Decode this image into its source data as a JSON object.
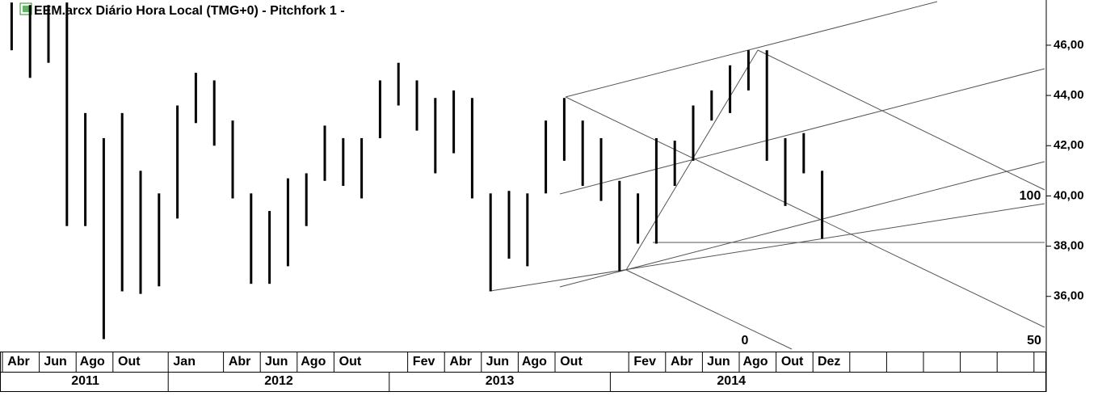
{
  "chart_data": {
    "type": "range",
    "title": "EEM.arcx Diário Hora Local (TMG+0)  -  Pitchfork 1 -",
    "categories": [
      "Abr",
      null,
      "Jun",
      null,
      "Ago",
      null,
      "Out",
      null,
      null,
      "Jan",
      null,
      null,
      "Abr",
      null,
      "Jun",
      null,
      "Ago",
      null,
      "Out",
      null,
      null,
      null,
      "Fev",
      null,
      "Abr",
      null,
      "Jun",
      null,
      "Ago",
      null,
      "Out",
      null,
      null,
      null,
      "Fev",
      null,
      "Abr",
      null,
      "Jun",
      null,
      "Ago",
      null,
      "Out",
      null,
      "Dez",
      null,
      null,
      null,
      null,
      null,
      null,
      null,
      null,
      null,
      null,
      null,
      null
    ],
    "years": [
      "2011",
      "2012",
      "2013",
      "2014"
    ],
    "high": [
      47.7,
      47.6,
      47.6,
      47.7,
      43.3,
      42.3,
      43.3,
      41.0,
      40.1,
      43.6,
      44.9,
      44.6,
      43.0,
      40.1,
      39.4,
      40.7,
      40.9,
      42.8,
      42.3,
      42.3,
      44.6,
      45.3,
      44.6,
      43.9,
      44.2,
      43.9,
      40.1,
      40.2,
      40.1,
      43.0,
      43.9,
      43.0,
      42.3,
      40.6,
      40.1,
      42.3,
      42.2,
      43.6,
      44.2,
      45.2,
      45.8,
      45.8,
      42.3,
      42.5,
      41.0,
      null,
      null,
      null,
      null,
      null,
      null,
      null,
      null,
      null,
      null,
      null,
      null
    ],
    "low": [
      45.8,
      44.7,
      45.3,
      38.8,
      38.8,
      34.3,
      36.2,
      36.1,
      36.4,
      39.1,
      42.9,
      42.0,
      39.9,
      36.5,
      36.5,
      37.2,
      38.8,
      40.6,
      40.4,
      39.9,
      42.3,
      43.6,
      42.6,
      40.9,
      41.7,
      39.9,
      36.2,
      37.5,
      37.2,
      40.1,
      41.4,
      40.4,
      39.8,
      37.0,
      38.1,
      38.1,
      40.4,
      41.4,
      43.0,
      43.3,
      44.2,
      41.4,
      39.6,
      40.9,
      38.3,
      null,
      null,
      null,
      null,
      null,
      null,
      null,
      null,
      null,
      null,
      null,
      null
    ],
    "color": "#000000",
    "ylim": [
      33.9,
      47.8
    ],
    "yticks": [
      {
        "value": 36,
        "label": "36,00"
      },
      {
        "value": 38,
        "label": "38,00"
      },
      {
        "value": 40,
        "label": "40,00"
      },
      {
        "value": 42,
        "label": "42,00"
      },
      {
        "value": 44,
        "label": "44,00"
      },
      {
        "value": 46,
        "label": "46,00"
      }
    ],
    "annotations": [
      "0",
      "50",
      "100"
    ]
  }
}
